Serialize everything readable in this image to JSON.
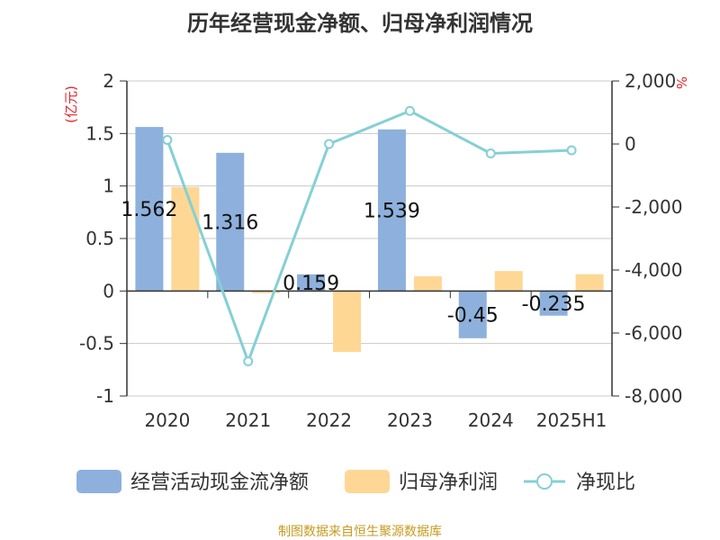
{
  "colors": {
    "bar1": "#8eb0dc",
    "bar2": "#fed795",
    "line": "#84d0d5",
    "unit_label": "#e8242a",
    "source": "#c79a1f",
    "title": "#333333",
    "axis_text": "#333333"
  },
  "chart_data": {
    "type": "bar",
    "title": "历年经营现金净额、归母净利润情况",
    "categories": [
      "2020",
      "2021",
      "2022",
      "2023",
      "2024",
      "2025H1"
    ],
    "left_unit": "(亿元)",
    "right_unit": "%",
    "y_left": {
      "ylim": [
        -1,
        2
      ],
      "ticks": [
        "2",
        "1.5",
        "1",
        "0.5",
        "0",
        "-0.5",
        "-1"
      ]
    },
    "y_right": {
      "ylim": [
        -8000,
        2000
      ],
      "ticks": [
        "2,000",
        "0",
        "-2,000",
        "-4,000",
        "-6,000",
        "-8,000"
      ]
    },
    "series": [
      {
        "name": "经营活动现金流净额",
        "type": "bar",
        "axis": "left",
        "values": [
          1.562,
          1.316,
          0.159,
          1.539,
          -0.45,
          -0.235
        ],
        "labels": [
          "1.562",
          "1.316",
          "0.159",
          "1.539",
          "-0.45",
          "-0.235"
        ]
      },
      {
        "name": "归母净利润",
        "type": "bar",
        "axis": "left",
        "values": [
          0.99,
          -0.02,
          -0.58,
          0.14,
          0.19,
          0.16
        ]
      },
      {
        "name": "净现比",
        "type": "line",
        "axis": "right",
        "values": [
          130,
          -6900,
          0,
          1050,
          -300,
          -200
        ]
      }
    ],
    "legend": [
      "经营活动现金流净额",
      "归母净利润",
      "净现比"
    ],
    "grid": true,
    "legend_position": "bottom"
  },
  "source_text": "制图数据来自恒生聚源数据库"
}
